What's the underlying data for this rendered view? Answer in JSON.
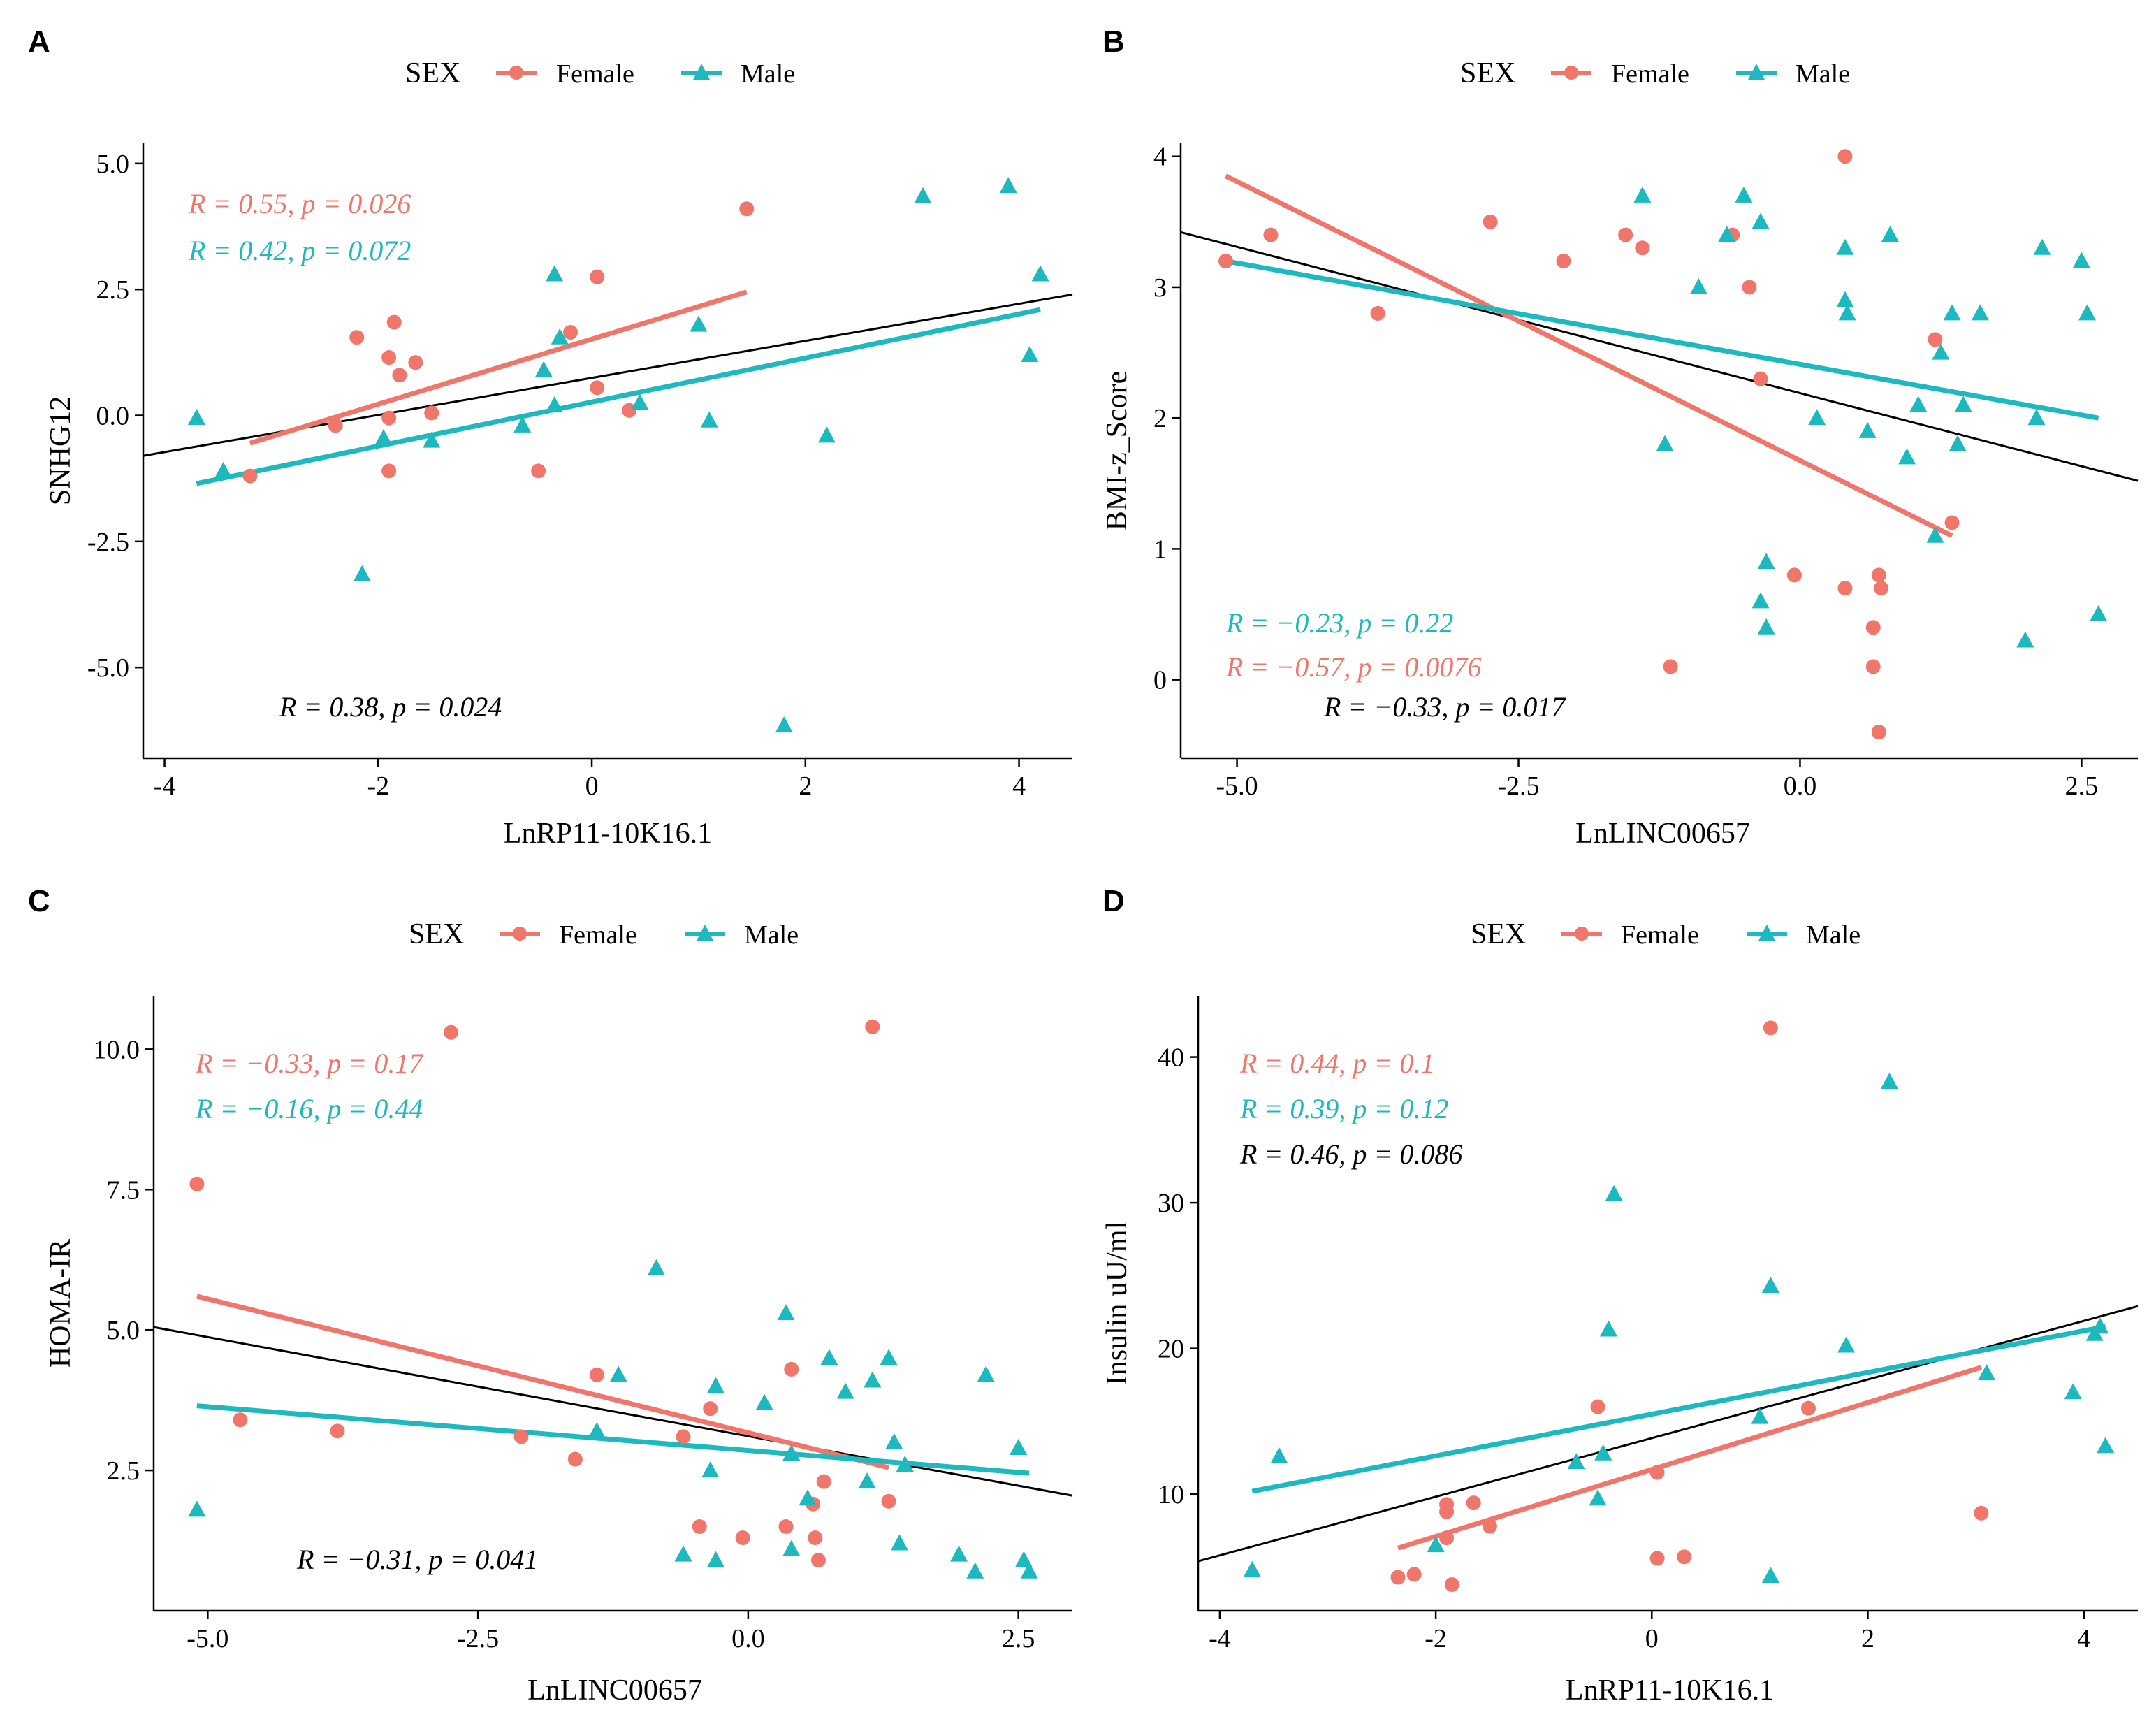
{
  "colors": {
    "female": "#F0766C",
    "male": "#1DB9BF",
    "overall": "#000000"
  },
  "legend": {
    "title": "SEX",
    "female_label": "Female",
    "male_label": "Male"
  },
  "chart_data": [
    {
      "panel": "A",
      "type": "scatter",
      "xlabel": "LnRP11-10K16.1",
      "ylabel": "SNHG12",
      "xlim": [
        -4.2,
        4.5
      ],
      "ylim": [
        -6.8,
        5.4
      ],
      "xticks": [
        -4,
        -2,
        0,
        2,
        4
      ],
      "xtick_labels": [
        "-4",
        "-2",
        "0",
        "2",
        "4"
      ],
      "yticks": [
        -5,
        -2.5,
        0,
        2.5,
        5
      ],
      "ytick_labels": [
        "-5.0",
        "-2.5",
        "0.0",
        "2.5",
        "5.0"
      ],
      "series": [
        {
          "name": "Female",
          "x": [
            -3.2,
            -2.4,
            -2.2,
            -1.9,
            -1.85,
            -1.8,
            -1.9,
            -1.9,
            -1.65,
            -1.5,
            -0.5,
            0.05,
            0.05,
            -0.2,
            0.35,
            1.45
          ],
          "y": [
            -1.2,
            -0.2,
            1.55,
            1.15,
            1.85,
            0.8,
            -0.05,
            -1.1,
            1.05,
            0.05,
            -1.1,
            2.75,
            0.55,
            1.65,
            0.1,
            4.1
          ]
        },
        {
          "name": "Male",
          "x": [
            -3.7,
            -3.45,
            -2.15,
            -1.95,
            -1.5,
            -0.65,
            -0.45,
            -0.35,
            -0.35,
            -0.3,
            0.45,
            1.0,
            1.1,
            1.8,
            2.2,
            3.1,
            3.9,
            4.1,
            4.2
          ],
          "y": [
            -0.05,
            -1.1,
            -3.15,
            -0.45,
            -0.5,
            -0.2,
            0.9,
            2.8,
            0.2,
            1.55,
            0.25,
            1.8,
            -0.1,
            -6.15,
            -0.4,
            4.35,
            4.55,
            1.2,
            2.8
          ]
        }
      ],
      "fits": [
        {
          "name": "Female",
          "x": [
            -3.2,
            1.45
          ],
          "y": [
            -0.55,
            2.45
          ]
        },
        {
          "name": "Male",
          "x": [
            -3.7,
            4.2
          ],
          "y": [
            -1.35,
            2.1
          ]
        },
        {
          "name": "Overall",
          "x": [
            -4.2,
            4.5
          ],
          "y": [
            -0.8,
            2.4
          ]
        }
      ],
      "annotations": [
        {
          "series": "Female",
          "text": "R = 0.55, p = 0.026"
        },
        {
          "series": "Male",
          "text": "R = 0.42, p = 0.072"
        },
        {
          "series": "Overall",
          "text": "R = 0.38, p = 0.024"
        }
      ]
    },
    {
      "panel": "B",
      "type": "scatter",
      "xlabel": "LnLINC00657",
      "ylabel": "BMI-z_Score",
      "xlim": [
        -5.5,
        3.0
      ],
      "ylim": [
        -0.6,
        4.1
      ],
      "xticks": [
        -5,
        -2.5,
        0,
        2.5
      ],
      "xtick_labels": [
        "-5.0",
        "-2.5",
        "0.0",
        "2.5"
      ],
      "yticks": [
        0,
        1,
        2,
        3,
        4
      ],
      "ytick_labels": [
        "0",
        "1",
        "2",
        "3",
        "4"
      ],
      "series": [
        {
          "name": "Female",
          "x": [
            -5.1,
            -4.7,
            -3.75,
            -2.75,
            -2.1,
            -1.55,
            -1.4,
            -1.15,
            -0.6,
            -0.45,
            -0.35,
            -0.05,
            0.4,
            0.4,
            0.65,
            0.65,
            0.7,
            0.7,
            0.72,
            1.2,
            1.35
          ],
          "y": [
            3.2,
            3.4,
            2.8,
            3.5,
            3.2,
            3.4,
            3.3,
            0.1,
            3.4,
            3.0,
            2.3,
            0.8,
            0.7,
            4.0,
            0.4,
            0.1,
            0.8,
            -0.4,
            0.7,
            2.6,
            1.2
          ]
        },
        {
          "name": "Male",
          "x": [
            -1.4,
            -1.2,
            -0.9,
            -0.65,
            -0.5,
            -0.35,
            -0.35,
            -0.3,
            -0.3,
            0.15,
            0.4,
            0.4,
            0.42,
            0.6,
            0.8,
            0.95,
            1.05,
            1.2,
            1.25,
            1.35,
            1.4,
            1.45,
            1.6,
            2.0,
            2.1,
            2.15,
            2.5,
            2.55,
            2.65
          ],
          "y": [
            3.7,
            1.8,
            3.0,
            3.4,
            3.7,
            3.5,
            0.6,
            0.9,
            0.4,
            2.0,
            3.3,
            2.9,
            2.8,
            1.9,
            3.4,
            1.7,
            2.1,
            1.1,
            2.5,
            2.8,
            1.8,
            2.1,
            2.8,
            0.3,
            2.0,
            3.3,
            3.2,
            2.8,
            0.5
          ]
        }
      ],
      "fits": [
        {
          "name": "Female",
          "x": [
            -5.1,
            1.35
          ],
          "y": [
            3.85,
            1.1
          ]
        },
        {
          "name": "Male",
          "x": [
            -5.1,
            2.65
          ],
          "y": [
            3.2,
            2.0
          ]
        },
        {
          "name": "Overall",
          "x": [
            -5.5,
            3.0
          ],
          "y": [
            3.42,
            1.52
          ]
        }
      ],
      "annotations": [
        {
          "series": "Male",
          "text": "R = −0.23, p = 0.22"
        },
        {
          "series": "Female",
          "text": "R = −0.57, p = 0.0076"
        },
        {
          "series": "Overall",
          "text": "R = −0.33, p = 0.017"
        }
      ]
    },
    {
      "panel": "C",
      "type": "scatter",
      "xlabel": "LnLINC00657",
      "ylabel": "HOMA-IR",
      "xlim": [
        -5.5,
        3.0
      ],
      "ylim": [
        0.0,
        10.95
      ],
      "xticks": [
        -5,
        -2.5,
        0,
        2.5
      ],
      "xtick_labels": [
        "-5.0",
        "-2.5",
        "0.0",
        "2.5"
      ],
      "yticks": [
        2.5,
        5,
        7.5,
        10
      ],
      "ytick_labels": [
        "2.5",
        "5.0",
        "7.5",
        "10.0"
      ],
      "series": [
        {
          "name": "Female",
          "x": [
            -5.1,
            -4.7,
            -3.8,
            -2.75,
            -2.1,
            -1.6,
            -1.4,
            -0.6,
            -0.45,
            -0.35,
            -0.05,
            0.35,
            0.4,
            0.6,
            0.62,
            0.65,
            0.7,
            1.15,
            1.3
          ],
          "y": [
            7.6,
            3.4,
            3.2,
            10.3,
            3.1,
            2.7,
            4.2,
            3.1,
            1.5,
            3.6,
            1.3,
            1.5,
            4.3,
            1.9,
            1.3,
            0.9,
            2.3,
            10.4,
            1.95
          ]
        },
        {
          "name": "Male",
          "x": [
            -5.1,
            -1.4,
            -1.2,
            -0.85,
            -0.6,
            -0.35,
            -0.3,
            -0.3,
            0.15,
            0.35,
            0.4,
            0.4,
            0.55,
            0.75,
            0.9,
            1.1,
            1.15,
            1.3,
            1.35,
            1.4,
            1.45,
            1.95,
            2.1,
            2.2,
            2.5,
            2.55,
            2.6
          ],
          "y": [
            1.8,
            3.2,
            4.2,
            6.1,
            1.0,
            2.5,
            4.0,
            0.9,
            3.7,
            5.3,
            2.8,
            1.1,
            2.0,
            4.5,
            3.9,
            2.3,
            4.1,
            4.5,
            3.0,
            1.2,
            2.6,
            1.0,
            0.7,
            4.2,
            2.9,
            0.9,
            0.7
          ]
        }
      ],
      "fits": [
        {
          "name": "Female",
          "x": [
            -5.1,
            1.3
          ],
          "y": [
            5.6,
            2.55
          ]
        },
        {
          "name": "Male",
          "x": [
            -5.1,
            2.6
          ],
          "y": [
            3.65,
            2.45
          ]
        },
        {
          "name": "Overall",
          "x": [
            -5.5,
            3.0
          ],
          "y": [
            5.05,
            2.05
          ]
        }
      ],
      "annotations": [
        {
          "series": "Female",
          "text": "R = −0.33, p = 0.17"
        },
        {
          "series": "Male",
          "text": "R = −0.16, p = 0.44"
        },
        {
          "series": "Overall",
          "text": "R = −0.31, p = 0.041"
        }
      ]
    },
    {
      "panel": "D",
      "type": "scatter",
      "xlabel": "LnRP11-10K16.1",
      "ylabel": "Insulin uU/ml",
      "xlim": [
        -4.2,
        4.5
      ],
      "ylim": [
        2.0,
        44.2
      ],
      "xticks": [
        -4,
        -2,
        0,
        2,
        4
      ],
      "xtick_labels": [
        "-4",
        "-2",
        "0",
        "2",
        "4"
      ],
      "yticks": [
        10,
        20,
        30,
        40
      ],
      "ytick_labels": [
        "10",
        "20",
        "30",
        "40"
      ],
      "series": [
        {
          "name": "Female",
          "x": [
            -2.35,
            -2.2,
            -1.9,
            -1.9,
            -1.9,
            -1.85,
            -1.65,
            -1.5,
            -0.5,
            0.05,
            0.05,
            0.3,
            1.1,
            1.45,
            3.05
          ],
          "y": [
            4.3,
            4.5,
            9.3,
            8.8,
            7.0,
            3.8,
            9.4,
            7.8,
            16.0,
            11.5,
            5.6,
            5.7,
            42.0,
            15.9,
            8.7
          ]
        },
        {
          "name": "Male",
          "x": [
            -3.7,
            -3.45,
            -2.0,
            -0.7,
            -0.5,
            -0.45,
            -0.4,
            -0.35,
            1.0,
            1.1,
            1.1,
            1.8,
            2.2,
            3.1,
            3.9,
            4.1,
            4.15,
            4.2
          ],
          "y": [
            4.8,
            12.6,
            6.5,
            12.2,
            9.7,
            12.8,
            21.3,
            30.6,
            15.3,
            24.3,
            4.4,
            20.2,
            38.3,
            18.3,
            17.0,
            21.0,
            21.5,
            13.3
          ]
        }
      ],
      "fits": [
        {
          "name": "Female",
          "x": [
            -2.35,
            3.05
          ],
          "y": [
            6.3,
            18.7
          ]
        },
        {
          "name": "Male",
          "x": [
            -3.7,
            4.2
          ],
          "y": [
            10.2,
            21.5
          ]
        },
        {
          "name": "Overall",
          "x": [
            -4.2,
            4.5
          ],
          "y": [
            5.4,
            22.9
          ]
        }
      ],
      "annotations": [
        {
          "series": "Female",
          "text": "R = 0.44, p = 0.1"
        },
        {
          "series": "Male",
          "text": "R = 0.39, p = 0.12"
        },
        {
          "series": "Overall",
          "text": "R = 0.46, p = 0.086"
        }
      ]
    }
  ]
}
